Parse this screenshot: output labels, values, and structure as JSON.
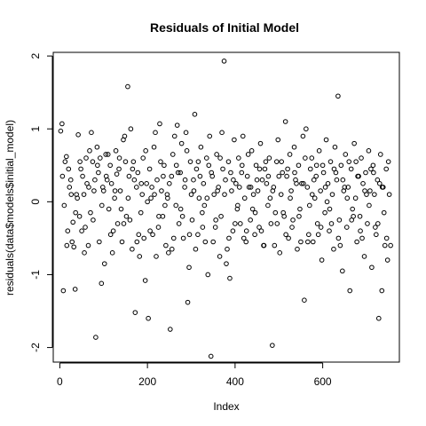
{
  "chart_data": {
    "type": "scatter",
    "title": "Residuals of Initial Model",
    "xlabel": "Index",
    "ylabel": "residuals(data$models$initial_model)",
    "xlim": [
      -15,
      775
    ],
    "ylim": [
      -2.2,
      2.05
    ],
    "x_ticks": [
      0,
      200,
      400,
      600
    ],
    "y_ticks": [
      -2,
      -1,
      0,
      1,
      2
    ],
    "x_tick_labels": [
      "0",
      "200",
      "400",
      "600"
    ],
    "y_tick_labels": [
      "-2",
      "-1",
      "0",
      "1",
      "2"
    ],
    "grid": false,
    "legend": null,
    "marker": "open-circle",
    "color": "#000000",
    "points": [
      [
        2,
        0.97
      ],
      [
        5,
        1.07
      ],
      [
        8,
        -1.22
      ],
      [
        12,
        0.55
      ],
      [
        15,
        0.62
      ],
      [
        18,
        -0.4
      ],
      [
        22,
        0.2
      ],
      [
        25,
        0.3
      ],
      [
        28,
        -0.55
      ],
      [
        32,
        -0.62
      ],
      [
        35,
        -1.2
      ],
      [
        38,
        0.1
      ],
      [
        42,
        0.92
      ],
      [
        45,
        -0.2
      ],
      [
        48,
        0.45
      ],
      [
        52,
        0.35
      ],
      [
        55,
        0.1
      ],
      [
        58,
        -0.35
      ],
      [
        62,
        0.25
      ],
      [
        65,
        -0.6
      ],
      [
        68,
        0.7
      ],
      [
        72,
        0.95
      ],
      [
        75,
        0.55
      ],
      [
        78,
        0.15
      ],
      [
        82,
        -1.86
      ],
      [
        85,
        0.75
      ],
      [
        88,
        0.4
      ],
      [
        92,
        0.6
      ],
      [
        95,
        -1.12
      ],
      [
        98,
        0.2
      ],
      [
        102,
        -0.85
      ],
      [
        105,
        0.65
      ],
      [
        108,
        0.3
      ],
      [
        112,
        -0.1
      ],
      [
        115,
        0.5
      ],
      [
        118,
        0.25
      ],
      [
        122,
        -0.4
      ],
      [
        125,
        0.05
      ],
      [
        128,
        0.7
      ],
      [
        132,
        -0.3
      ],
      [
        135,
        0.45
      ],
      [
        138,
        0.15
      ],
      [
        142,
        -0.55
      ],
      [
        145,
        0.85
      ],
      [
        148,
        0.9
      ],
      [
        152,
        -0.2
      ],
      [
        155,
        1.58
      ],
      [
        158,
        0.35
      ],
      [
        162,
        1.0
      ],
      [
        165,
        -0.65
      ],
      [
        168,
        0.55
      ],
      [
        172,
        -1.52
      ],
      [
        175,
        0.2
      ],
      [
        178,
        0.4
      ],
      [
        182,
        -0.75
      ],
      [
        185,
        -0.15
      ],
      [
        188,
        0.1
      ],
      [
        192,
        -0.5
      ],
      [
        195,
        -1.08
      ],
      [
        198,
        0.25
      ],
      [
        202,
        -1.6
      ],
      [
        205,
        0.45
      ],
      [
        208,
        0.05
      ],
      [
        212,
        -0.45
      ],
      [
        215,
        0.75
      ],
      [
        218,
        0.95
      ],
      [
        222,
        0.3
      ],
      [
        225,
        -0.35
      ],
      [
        228,
        1.07
      ],
      [
        232,
        0.15
      ],
      [
        235,
        -0.2
      ],
      [
        238,
        0.5
      ],
      [
        242,
        -0.6
      ],
      [
        245,
        0.1
      ],
      [
        248,
        -0.7
      ],
      [
        252,
        -1.75
      ],
      [
        255,
        0.35
      ],
      [
        258,
        0.65
      ],
      [
        262,
        0.9
      ],
      [
        265,
        -0.05
      ],
      [
        268,
        1.05
      ],
      [
        272,
        -0.3
      ],
      [
        275,
        0.4
      ],
      [
        278,
        0.8
      ],
      [
        282,
        -0.5
      ],
      [
        285,
        0.2
      ],
      [
        288,
        0.95
      ],
      [
        292,
        -1.38
      ],
      [
        295,
        -0.9
      ],
      [
        298,
        0.55
      ],
      [
        302,
        -0.25
      ],
      [
        305,
        0.3
      ],
      [
        308,
        1.2
      ],
      [
        312,
        0.45
      ],
      [
        315,
        -0.45
      ],
      [
        318,
        0.05
      ],
      [
        322,
        0.75
      ],
      [
        325,
        -0.15
      ],
      [
        328,
        0.25
      ],
      [
        332,
        -0.55
      ],
      [
        335,
        0.6
      ],
      [
        338,
        -1.0
      ],
      [
        342,
        0.9
      ],
      [
        345,
        -2.12
      ],
      [
        348,
        0.35
      ],
      [
        352,
        0.1
      ],
      [
        355,
        -0.35
      ],
      [
        358,
        0.65
      ],
      [
        362,
        0.2
      ],
      [
        365,
        -0.75
      ],
      [
        368,
        -0.2
      ],
      [
        372,
        0.45
      ],
      [
        375,
        1.93
      ],
      [
        378,
        0.3
      ],
      [
        382,
        -0.65
      ],
      [
        385,
        0.55
      ],
      [
        388,
        -1.05
      ],
      [
        392,
        0.15
      ],
      [
        395,
        -0.4
      ],
      [
        398,
        0.85
      ],
      [
        402,
        0.25
      ],
      [
        405,
        -0.1
      ],
      [
        408,
        0.6
      ],
      [
        412,
        -0.3
      ],
      [
        415,
        0.4
      ],
      [
        418,
        0.9
      ],
      [
        422,
        0.05
      ],
      [
        425,
        -0.55
      ],
      [
        428,
        0.35
      ],
      [
        432,
        0.2
      ],
      [
        435,
        -0.25
      ],
      [
        438,
        0.7
      ],
      [
        442,
        0.1
      ],
      [
        445,
        -0.45
      ],
      [
        448,
        0.5
      ],
      [
        452,
        0.15
      ],
      [
        455,
        -0.35
      ],
      [
        458,
        0.8
      ],
      [
        462,
        0.3
      ],
      [
        465,
        -0.6
      ],
      [
        468,
        0.45
      ],
      [
        472,
        0.25
      ],
      [
        475,
        -0.05
      ],
      [
        478,
        0.6
      ],
      [
        482,
        -0.3
      ],
      [
        485,
        -1.97
      ],
      [
        488,
        0.2
      ],
      [
        492,
        -0.15
      ],
      [
        495,
        0.55
      ],
      [
        498,
        0.85
      ],
      [
        502,
        -0.7
      ],
      [
        505,
        0.1
      ],
      [
        508,
        0.4
      ],
      [
        512,
        -0.2
      ],
      [
        515,
        1.1
      ],
      [
        518,
        0.35
      ],
      [
        522,
        -0.5
      ],
      [
        525,
        0.65
      ],
      [
        528,
        0.15
      ],
      [
        532,
        -0.25
      ],
      [
        535,
        0.75
      ],
      [
        538,
        0.3
      ],
      [
        542,
        -0.65
      ],
      [
        545,
        0.5
      ],
      [
        548,
        -0.1
      ],
      [
        552,
        0.25
      ],
      [
        555,
        0.9
      ],
      [
        558,
        -1.35
      ],
      [
        562,
        1.0
      ],
      [
        565,
        0.2
      ],
      [
        568,
        -0.45
      ],
      [
        572,
        0.45
      ],
      [
        575,
        0.6
      ],
      [
        578,
        -0.55
      ],
      [
        582,
        0.05
      ],
      [
        585,
        0.35
      ],
      [
        588,
        -0.3
      ],
      [
        592,
        0.7
      ],
      [
        595,
        0.15
      ],
      [
        598,
        -0.8
      ],
      [
        602,
        0.4
      ],
      [
        605,
        -0.15
      ],
      [
        608,
        0.85
      ],
      [
        612,
        0.25
      ],
      [
        615,
        -0.4
      ],
      [
        618,
        0.55
      ],
      [
        622,
        0.1
      ],
      [
        625,
        -0.65
      ],
      [
        628,
        0.75
      ],
      [
        632,
        0.3
      ],
      [
        635,
        1.45
      ],
      [
        638,
        -0.25
      ],
      [
        642,
        0.5
      ],
      [
        645,
        -0.95
      ],
      [
        648,
        0.15
      ],
      [
        652,
        0.65
      ],
      [
        655,
        -0.35
      ],
      [
        658,
        0.2
      ],
      [
        662,
        -1.22
      ],
      [
        665,
        0.45
      ],
      [
        668,
        -0.1
      ],
      [
        672,
        0.8
      ],
      [
        675,
        0.05
      ],
      [
        678,
        -0.55
      ],
      [
        682,
        0.35
      ],
      [
        685,
        -0.2
      ],
      [
        688,
        0.6
      ],
      [
        692,
        0.25
      ],
      [
        695,
        -0.75
      ],
      [
        698,
        0.4
      ],
      [
        702,
        -0.3
      ],
      [
        705,
        0.7
      ],
      [
        708,
        0.15
      ],
      [
        712,
        -0.9
      ],
      [
        715,
        0.5
      ],
      [
        718,
        0.1
      ],
      [
        722,
        -0.45
      ],
      [
        725,
        0.3
      ],
      [
        728,
        -1.6
      ],
      [
        732,
        0.65
      ],
      [
        735,
        -1.22
      ],
      [
        738,
        0.2
      ],
      [
        742,
        -0.6
      ],
      [
        745,
        0.45
      ],
      [
        748,
        -0.8
      ],
      [
        752,
        0.1
      ],
      [
        755,
        -0.6
      ],
      [
        10,
        -0.05
      ],
      [
        20,
        0.45
      ],
      [
        30,
        -0.28
      ],
      [
        40,
        0.05
      ],
      [
        50,
        -0.4
      ],
      [
        60,
        0.6
      ],
      [
        70,
        -0.15
      ],
      [
        80,
        0.3
      ],
      [
        90,
        -0.55
      ],
      [
        100,
        0.15
      ],
      [
        110,
        0.65
      ],
      [
        120,
        -0.7
      ],
      [
        130,
        0.38
      ],
      [
        140,
        -0.1
      ],
      [
        150,
        0.55
      ],
      [
        160,
        -0.25
      ],
      [
        170,
        0.3
      ],
      [
        180,
        -0.45
      ],
      [
        190,
        0.6
      ],
      [
        200,
        0.0
      ],
      [
        210,
        0.2
      ],
      [
        220,
        -0.75
      ],
      [
        230,
        0.55
      ],
      [
        240,
        -0.05
      ],
      [
        250,
        0.25
      ],
      [
        260,
        -0.5
      ],
      [
        270,
        0.4
      ],
      [
        280,
        -0.2
      ],
      [
        290,
        0.7
      ],
      [
        300,
        0.1
      ],
      [
        310,
        -0.65
      ],
      [
        320,
        0.35
      ],
      [
        330,
        -0.05
      ],
      [
        340,
        0.5
      ],
      [
        350,
        -0.55
      ],
      [
        360,
        0.15
      ],
      [
        370,
        0.95
      ],
      [
        380,
        -0.85
      ],
      [
        390,
        0.4
      ],
      [
        400,
        -0.3
      ],
      [
        410,
        0.2
      ],
      [
        420,
        -0.5
      ],
      [
        430,
        0.65
      ],
      [
        440,
        -0.1
      ],
      [
        450,
        0.3
      ],
      [
        460,
        -0.4
      ],
      [
        470,
        0.55
      ],
      [
        480,
        0.05
      ],
      [
        490,
        -0.6
      ],
      [
        500,
        0.35
      ],
      [
        510,
        -0.15
      ],
      [
        520,
        0.45
      ],
      [
        530,
        -0.35
      ],
      [
        540,
        0.25
      ],
      [
        550,
        -0.55
      ],
      [
        560,
        0.6
      ],
      [
        570,
        -0.05
      ],
      [
        580,
        0.3
      ],
      [
        590,
        -0.45
      ],
      [
        600,
        0.5
      ],
      [
        610,
        0.0
      ],
      [
        620,
        -0.3
      ],
      [
        630,
        0.4
      ],
      [
        640,
        -0.6
      ],
      [
        650,
        0.2
      ],
      [
        660,
        0.55
      ],
      [
        670,
        -0.2
      ],
      [
        680,
        0.35
      ],
      [
        690,
        -0.5
      ],
      [
        700,
        0.1
      ],
      [
        710,
        0.45
      ],
      [
        720,
        -0.35
      ],
      [
        730,
        0.25
      ],
      [
        740,
        -0.15
      ],
      [
        750,
        0.55
      ],
      [
        6,
        0.35
      ],
      [
        16,
        -0.6
      ],
      [
        26,
        0.1
      ],
      [
        36,
        -0.15
      ],
      [
        46,
        0.55
      ],
      [
        56,
        -0.7
      ],
      [
        66,
        0.2
      ],
      [
        76,
        -0.25
      ],
      [
        86,
        0.5
      ],
      [
        96,
        -0.05
      ],
      [
        106,
        0.35
      ],
      [
        116,
        -0.45
      ],
      [
        126,
        0.15
      ],
      [
        136,
        0.6
      ],
      [
        146,
        -0.3
      ],
      [
        156,
        0.05
      ],
      [
        166,
        0.45
      ],
      [
        176,
        -0.55
      ],
      [
        186,
        0.25
      ],
      [
        196,
        0.7
      ],
      [
        206,
        -0.4
      ],
      [
        216,
        0.1
      ],
      [
        226,
        -0.2
      ],
      [
        236,
        0.35
      ],
      [
        246,
        0.05
      ],
      [
        256,
        -0.65
      ],
      [
        266,
        0.5
      ],
      [
        276,
        -0.1
      ],
      [
        286,
        0.3
      ],
      [
        296,
        -0.45
      ],
      [
        306,
        0.15
      ],
      [
        316,
        0.55
      ],
      [
        326,
        -0.35
      ],
      [
        336,
        0.05
      ],
      [
        346,
        0.4
      ],
      [
        356,
        -0.25
      ],
      [
        366,
        0.6
      ],
      [
        376,
        0.1
      ],
      [
        386,
        -0.5
      ],
      [
        396,
        0.3
      ],
      [
        406,
        -0.05
      ],
      [
        416,
        0.5
      ],
      [
        426,
        -0.4
      ],
      [
        436,
        0.2
      ],
      [
        446,
        -0.15
      ],
      [
        456,
        0.45
      ],
      [
        466,
        -0.6
      ],
      [
        476,
        0.35
      ],
      [
        486,
        0.15
      ],
      [
        496,
        -0.3
      ],
      [
        506,
        0.55
      ],
      [
        516,
        -0.45
      ],
      [
        526,
        0.05
      ],
      [
        536,
        0.4
      ],
      [
        546,
        -0.2
      ],
      [
        556,
        0.25
      ],
      [
        566,
        -0.55
      ],
      [
        576,
        0.1
      ],
      [
        586,
        0.5
      ],
      [
        596,
        -0.35
      ],
      [
        606,
        0.2
      ],
      [
        616,
        -0.1
      ],
      [
        626,
        0.45
      ],
      [
        636,
        -0.5
      ],
      [
        646,
        0.3
      ],
      [
        656,
        0.05
      ],
      [
        666,
        -0.25
      ],
      [
        676,
        0.55
      ],
      [
        686,
        -0.4
      ],
      [
        696,
        0.15
      ],
      [
        706,
        -0.05
      ],
      [
        716,
        0.4
      ],
      [
        726,
        -0.3
      ],
      [
        736,
        0.2
      ],
      [
        746,
        -0.5
      ]
    ]
  }
}
